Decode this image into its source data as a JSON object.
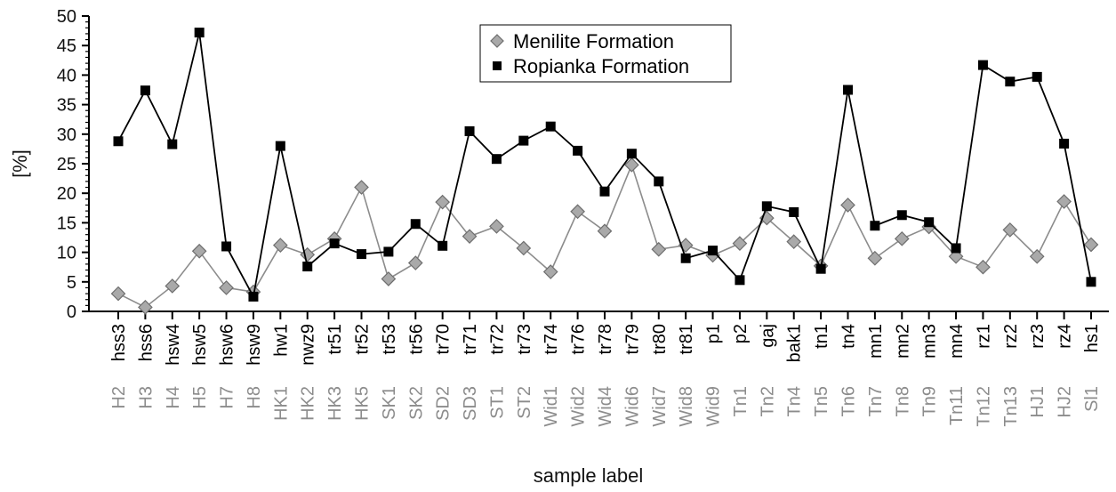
{
  "chart_data": {
    "type": "line",
    "title": "",
    "xlabel": "sample label",
    "ylabel": "[%]",
    "ylim": [
      0,
      50
    ],
    "yticks": [
      0,
      5,
      10,
      15,
      20,
      25,
      30,
      35,
      40,
      45,
      50
    ],
    "grid": false,
    "legend_position": "top-center",
    "categories": [
      "hss3",
      "hss6",
      "hsw4",
      "hsw5",
      "hsw6",
      "hsw9",
      "hw1",
      "nwz9",
      "tr51",
      "tr52",
      "tr53",
      "tr56",
      "tr70",
      "tr71",
      "tr72",
      "tr73",
      "tr74",
      "tr76",
      "tr78",
      "tr79",
      "tr80",
      "tr81",
      "p1",
      "p2",
      "gaj",
      "bak1",
      "tn1",
      "tn4",
      "mn1",
      "mn2",
      "mn3",
      "mn4",
      "rz1",
      "rz2",
      "rz3",
      "rz4",
      "hs1"
    ],
    "categories_secondary": [
      "H2",
      "H3",
      "H4",
      "H5",
      "H7",
      "H8",
      "HK1",
      "HK2",
      "HK3",
      "HK5",
      "SK1",
      "SK2",
      "SD2",
      "SD3",
      "ST1",
      "ST2",
      "Wid1",
      "Wid2",
      "Wid4",
      "Wid6",
      "Wid7",
      "Wid8",
      "Wid9",
      "Tn1",
      "Tn2",
      "Tn4",
      "Tn5",
      "Tn6",
      "Tn7",
      "Tn8",
      "Tn9",
      "Tn11",
      "Tn12",
      "Tn13",
      "HJ1",
      "HJ2",
      "Sl1"
    ],
    "series": [
      {
        "name": "Menilite Formation",
        "marker": "diamond",
        "color": "#a9a9a9",
        "line_color": "#8c8c8c",
        "values": [
          3.0,
          0.7,
          4.3,
          10.2,
          4.0,
          3.3,
          11.2,
          9.6,
          12.3,
          21.0,
          5.5,
          8.2,
          18.5,
          12.7,
          14.4,
          10.7,
          6.7,
          16.9,
          13.6,
          24.8,
          10.5,
          11.2,
          9.5,
          11.5,
          15.8,
          11.8,
          7.7,
          18.0,
          9.0,
          12.3,
          14.3,
          9.3,
          7.5,
          13.8,
          9.3,
          18.6,
          11.3
        ]
      },
      {
        "name": "Ropianka Formation",
        "marker": "square",
        "color": "#000000",
        "line_color": "#000000",
        "values": [
          28.8,
          37.4,
          28.3,
          47.2,
          11.0,
          2.5,
          28.0,
          7.6,
          11.5,
          9.7,
          10.1,
          14.8,
          11.1,
          30.5,
          25.8,
          28.9,
          31.3,
          27.2,
          20.3,
          26.7,
          22.0,
          9.0,
          10.3,
          5.3,
          17.8,
          16.8,
          7.2,
          37.5,
          14.5,
          16.3,
          15.1,
          10.7,
          41.7,
          38.9,
          39.7,
          28.4,
          5.0
        ]
      }
    ]
  }
}
